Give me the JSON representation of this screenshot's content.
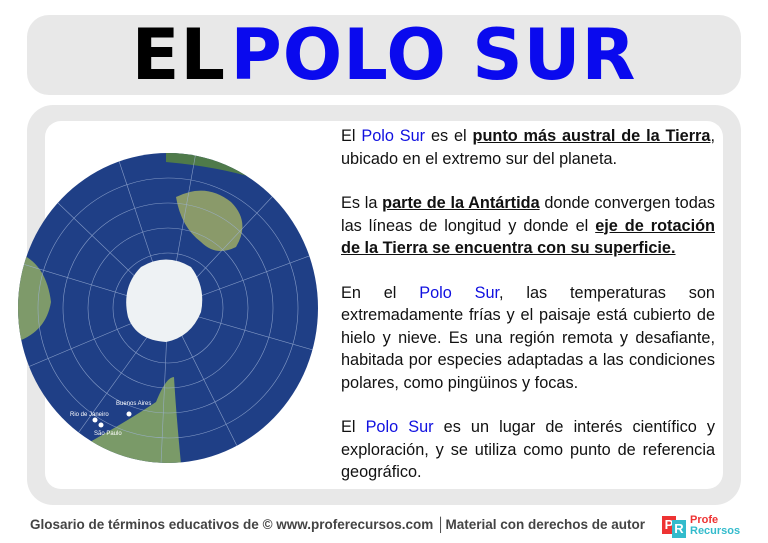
{
  "title": {
    "part1": "EL",
    "part2": "POLO SUR"
  },
  "map": {
    "labels": [
      "Buenos Aires",
      "Rio de Janeiro",
      "São Paulo"
    ]
  },
  "paragraphs": [
    {
      "a": "El ",
      "b": "Polo Sur",
      "c": " es el ",
      "d": "punto más austral de la Tierra",
      "e": ", ubicado en el extremo sur del planeta."
    },
    {
      "a": "Es la ",
      "b": "parte de la Antártida",
      "c": " donde convergen todas las líneas de longitud y donde el ",
      "d": "eje de rotación de la Tierra se encuentra con su superficie."
    },
    {
      "a": "En el ",
      "b": "Polo Sur",
      "c": ", las temperaturas son extremadamente frías y el paisaje está cubierto de hielo y nieve. Es una región remota y desafiante, habitada por especies adaptadas a las condiciones polares, como pingüinos y focas."
    },
    {
      "a": "El ",
      "b": "Polo Sur",
      "c": " es un lugar de interés científico y exploración, y se utiliza como punto de referencia geográfico."
    }
  ],
  "footer": {
    "text": "Glosario de términos educativos de © www.proferecursos.com │Material con derechos de autor"
  },
  "logo": {
    "p": "P",
    "r": "R",
    "line1": "Profe",
    "line2": "Recursos"
  },
  "colors": {
    "accent": "#0a0aee",
    "panel": "#e8e8e8"
  }
}
